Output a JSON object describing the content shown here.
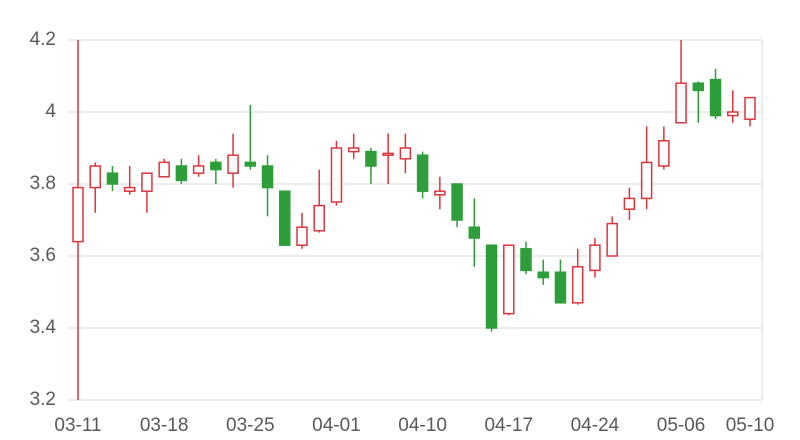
{
  "chart_data": {
    "type": "candlestick",
    "categories": [
      "03-11",
      null,
      null,
      null,
      null,
      "03-18",
      null,
      null,
      null,
      null,
      "03-25",
      null,
      null,
      null,
      null,
      "04-01",
      null,
      null,
      null,
      null,
      "04-10",
      null,
      null,
      null,
      null,
      "04-17",
      null,
      null,
      null,
      null,
      "04-24",
      null,
      null,
      null,
      null,
      "05-06",
      null,
      null,
      null,
      "05-10"
    ],
    "open": [
      3.64,
      3.79,
      3.83,
      3.78,
      3.78,
      3.82,
      3.85,
      3.83,
      3.86,
      3.83,
      3.86,
      3.85,
      3.78,
      3.63,
      3.67,
      3.75,
      3.89,
      3.89,
      3.88,
      3.87,
      3.88,
      3.77,
      3.8,
      3.68,
      3.63,
      3.44,
      3.62,
      3.555,
      3.555,
      3.47,
      3.56,
      3.6,
      3.73,
      3.76,
      3.85,
      3.97,
      4.08,
      4.09,
      3.99,
      3.98
    ],
    "high": [
      4.2,
      3.86,
      3.85,
      3.85,
      3.83,
      3.87,
      3.87,
      3.88,
      3.87,
      3.94,
      4.02,
      3.88,
      3.78,
      3.72,
      3.84,
      3.92,
      3.94,
      3.9,
      3.94,
      3.94,
      3.89,
      3.82,
      3.8,
      3.76,
      3.63,
      3.63,
      3.64,
      3.59,
      3.59,
      3.62,
      3.65,
      3.71,
      3.79,
      3.96,
      3.96,
      4.2,
      4.085,
      4.12,
      4.06,
      4.04
    ],
    "low": [
      3.2,
      3.72,
      3.78,
      3.77,
      3.72,
      3.82,
      3.8,
      3.82,
      3.8,
      3.79,
      3.84,
      3.71,
      3.63,
      3.62,
      3.665,
      3.74,
      3.87,
      3.8,
      3.8,
      3.83,
      3.76,
      3.73,
      3.68,
      3.57,
      3.39,
      3.435,
      3.55,
      3.52,
      3.47,
      3.465,
      3.54,
      3.6,
      3.7,
      3.73,
      3.84,
      3.97,
      3.97,
      3.98,
      3.97,
      3.96
    ],
    "close": [
      3.79,
      3.85,
      3.8,
      3.79,
      3.83,
      3.86,
      3.81,
      3.85,
      3.84,
      3.88,
      3.85,
      3.79,
      3.63,
      3.68,
      3.74,
      3.9,
      3.9,
      3.85,
      3.885,
      3.9,
      3.78,
      3.78,
      3.7,
      3.65,
      3.4,
      3.63,
      3.56,
      3.54,
      3.47,
      3.57,
      3.63,
      3.69,
      3.76,
      3.86,
      3.92,
      4.08,
      4.06,
      3.99,
      4.0,
      4.04
    ],
    "up_color": "#d9363e",
    "down_color": "#2e9e3a",
    "ylim": [
      3.2,
      4.2
    ],
    "yticks": [
      3.2,
      3.4,
      3.6,
      3.8,
      4,
      4.2
    ],
    "grid": true
  }
}
